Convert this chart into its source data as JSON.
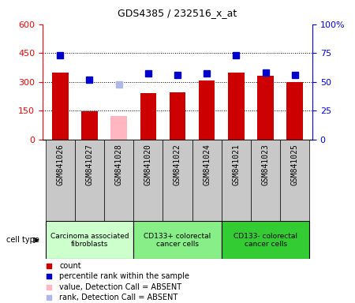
{
  "title": "GDS4385 / 232516_x_at",
  "samples": [
    "GSM841026",
    "GSM841027",
    "GSM841028",
    "GSM841020",
    "GSM841022",
    "GSM841024",
    "GSM841021",
    "GSM841023",
    "GSM841025"
  ],
  "counts": [
    350,
    148,
    null,
    240,
    245,
    307,
    350,
    330,
    300
  ],
  "counts_absent": [
    null,
    null,
    120,
    null,
    null,
    null,
    null,
    null,
    null
  ],
  "ranks": [
    73,
    52,
    null,
    57,
    56,
    57,
    73,
    58,
    56
  ],
  "ranks_absent": [
    null,
    null,
    48,
    null,
    null,
    null,
    null,
    null,
    null
  ],
  "count_color": "#cc0000",
  "count_absent_color": "#ffb6c1",
  "rank_color": "#0000cc",
  "rank_absent_color": "#b0b8e8",
  "ylim_left": [
    0,
    600
  ],
  "ylim_right": [
    0,
    100
  ],
  "yticks_left": [
    0,
    150,
    300,
    450,
    600
  ],
  "yticks_right": [
    0,
    25,
    50,
    75,
    100
  ],
  "cell_groups": [
    {
      "label": "Carcinoma associated\nfibroblasts",
      "start": 0,
      "end": 3,
      "color": "#ccffcc"
    },
    {
      "label": "CD133+ colorectal\ncancer cells",
      "start": 3,
      "end": 6,
      "color": "#88ee88"
    },
    {
      "label": "CD133- colorectal\ncancer cells",
      "start": 6,
      "end": 9,
      "color": "#33cc33"
    }
  ],
  "legend_items": [
    {
      "label": "count",
      "color": "#cc0000"
    },
    {
      "label": "percentile rank within the sample",
      "color": "#0000cc"
    },
    {
      "label": "value, Detection Call = ABSENT",
      "color": "#ffb6c1"
    },
    {
      "label": "rank, Detection Call = ABSENT",
      "color": "#b0b8e8"
    }
  ],
  "bar_width": 0.55,
  "marker_size": 6,
  "cell_type_label": "cell type"
}
